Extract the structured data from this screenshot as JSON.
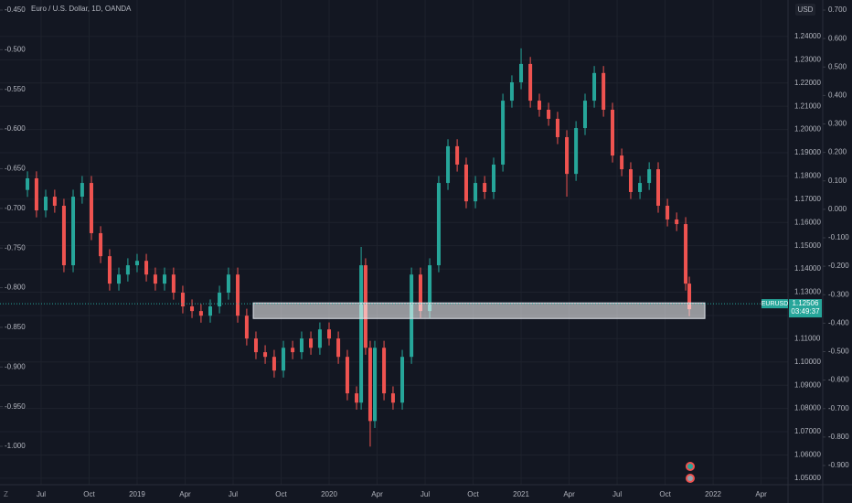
{
  "chart_data": {
    "type": "candlestick",
    "title": "Euro / U.S. Dollar, 1D, OANDA",
    "symbol": "EURUSD",
    "last_price": 1.12506,
    "countdown": "03:49:37",
    "currency": "USD",
    "up_color": "#26a69a",
    "down_color": "#ef5350",
    "grid": true,
    "xlim": [
      2018.286,
      2022.39
    ],
    "xticks": [
      {
        "value": 2018.5,
        "label": "Jul"
      },
      {
        "value": 2018.75,
        "label": "Oct"
      },
      {
        "value": 2019.0,
        "label": "2019"
      },
      {
        "value": 2019.25,
        "label": "Apr"
      },
      {
        "value": 2019.5,
        "label": "Jul"
      },
      {
        "value": 2019.75,
        "label": "Oct"
      },
      {
        "value": 2020.0,
        "label": "2020"
      },
      {
        "value": 2020.25,
        "label": "Apr"
      },
      {
        "value": 2020.5,
        "label": "Jul"
      },
      {
        "value": 2020.75,
        "label": "Oct"
      },
      {
        "value": 2021.0,
        "label": "2021"
      },
      {
        "value": 2021.25,
        "label": "Apr"
      },
      {
        "value": 2021.5,
        "label": "Jul"
      },
      {
        "value": 2021.75,
        "label": "Oct"
      },
      {
        "value": 2022.0,
        "label": "2022"
      },
      {
        "value": 2022.25,
        "label": "Apr"
      }
    ],
    "ylim": [
      1.0472,
      1.2557
    ],
    "yticks": [
      {
        "value": 1.24,
        "label": "1.24000"
      },
      {
        "value": 1.23,
        "label": "1.23000"
      },
      {
        "value": 1.22,
        "label": "1.22000"
      },
      {
        "value": 1.21,
        "label": "1.21000"
      },
      {
        "value": 1.2,
        "label": "1.20000"
      },
      {
        "value": 1.19,
        "label": "1.19000"
      },
      {
        "value": 1.18,
        "label": "1.18000"
      },
      {
        "value": 1.17,
        "label": "1.17000"
      },
      {
        "value": 1.16,
        "label": "1.16000"
      },
      {
        "value": 1.15,
        "label": "1.15000"
      },
      {
        "value": 1.14,
        "label": "1.14000"
      },
      {
        "value": 1.13,
        "label": "1.13000"
      },
      {
        "value": 1.12,
        "label": "1.12000"
      },
      {
        "value": 1.11,
        "label": "1.11000"
      },
      {
        "value": 1.1,
        "label": "1.10000"
      },
      {
        "value": 1.09,
        "label": "1.09000"
      },
      {
        "value": 1.08,
        "label": "1.08000"
      },
      {
        "value": 1.07,
        "label": "1.07000"
      },
      {
        "value": 1.06,
        "label": "1.06000"
      },
      {
        "value": 1.05,
        "label": "1.05000"
      }
    ],
    "y2lim": [
      -1.0484,
      -0.4373
    ],
    "y2ticks": [
      {
        "value": -0.45,
        "label": "-0.450"
      },
      {
        "value": -0.5,
        "label": "-0.500"
      },
      {
        "value": -0.55,
        "label": "-0.550"
      },
      {
        "value": -0.6,
        "label": "-0.600"
      },
      {
        "value": -0.65,
        "label": "-0.650"
      },
      {
        "value": -0.7,
        "label": "-0.700"
      },
      {
        "value": -0.75,
        "label": "-0.750"
      },
      {
        "value": -0.8,
        "label": "-0.800"
      },
      {
        "value": -0.85,
        "label": "-0.850"
      },
      {
        "value": -0.9,
        "label": "-0.900"
      },
      {
        "value": -0.95,
        "label": "-0.950"
      },
      {
        "value": -1.0,
        "label": "-1.000"
      }
    ],
    "y3lim": [
      -0.9675,
      0.7354
    ],
    "y3ticks": [
      {
        "value": 0.7,
        "label": "0.700"
      },
      {
        "value": 0.6,
        "label": "0.600"
      },
      {
        "value": 0.5,
        "label": "0.500"
      },
      {
        "value": 0.4,
        "label": "0.400"
      },
      {
        "value": 0.3,
        "label": "0.300"
      },
      {
        "value": 0.2,
        "label": "0.200"
      },
      {
        "value": 0.1,
        "label": "0.100"
      },
      {
        "value": 0,
        "label": "0.000"
      },
      {
        "value": -0.1,
        "label": "-0.100"
      },
      {
        "value": -0.2,
        "label": "-0.200"
      },
      {
        "value": -0.3,
        "label": "-0.300"
      },
      {
        "value": -0.4,
        "label": "-0.400"
      },
      {
        "value": -0.5,
        "label": "-0.500"
      },
      {
        "value": -0.6,
        "label": "-0.600"
      },
      {
        "value": -0.7,
        "label": "-0.700"
      },
      {
        "value": -0.8,
        "label": "-0.800"
      },
      {
        "value": -0.9,
        "label": "-0.900"
      }
    ],
    "zone": {
      "x": [
        2019.605,
        2021.957
      ],
      "y": [
        1.1187,
        1.1254
      ]
    },
    "x": [
      2018.429,
      2018.476,
      2018.524,
      2018.571,
      2018.619,
      2018.667,
      2018.714,
      2018.762,
      2018.81,
      2018.857,
      2018.905,
      2018.952,
      2019.0,
      2019.048,
      2019.095,
      2019.143,
      2019.19,
      2019.238,
      2019.286,
      2019.333,
      2019.381,
      2019.429,
      2019.476,
      2019.524,
      2019.571,
      2019.619,
      2019.667,
      2019.714,
      2019.762,
      2019.81,
      2019.857,
      2019.905,
      2019.952,
      2020.0,
      2020.048,
      2020.095,
      2020.143,
      2020.167,
      2020.19,
      2020.214,
      2020.238,
      2020.286,
      2020.333,
      2020.381,
      2020.429,
      2020.476,
      2020.524,
      2020.571,
      2020.619,
      2020.667,
      2020.714,
      2020.762,
      2020.81,
      2020.857,
      2020.905,
      2020.952,
      2021.0,
      2021.048,
      2021.095,
      2021.143,
      2021.19,
      2021.238,
      2021.286,
      2021.333,
      2021.381,
      2021.429,
      2021.476,
      2021.524,
      2021.571,
      2021.619,
      2021.667,
      2021.714,
      2021.762,
      2021.81,
      2021.857,
      2021.876
    ],
    "open": [
      1.174,
      1.179,
      1.1652,
      1.1711,
      1.1672,
      1.1416,
      1.1711,
      1.177,
      1.1554,
      1.1455,
      1.1337,
      1.1376,
      1.1416,
      1.1435,
      1.1376,
      1.1337,
      1.1376,
      1.1298,
      1.1239,
      1.1219,
      1.1199,
      1.1239,
      1.1298,
      1.1376,
      1.1199,
      1.1101,
      1.1042,
      1.1022,
      1.0963,
      1.1061,
      1.1042,
      1.1101,
      1.1061,
      1.114,
      1.1101,
      1.1022,
      1.0865,
      1.0825,
      1.1416,
      1.1061,
      1.0746,
      1.1061,
      1.0865,
      1.0825,
      1.1022,
      1.1376,
      1.1219,
      1.1416,
      1.177,
      1.1928,
      1.1849,
      1.1691,
      1.177,
      1.1731,
      1.1849,
      1.2124,
      1.2203,
      1.2282,
      1.2124,
      1.2085,
      1.2046,
      1.1967,
      1.1809,
      1.2006,
      1.2124,
      1.2243,
      1.2085,
      1.1888,
      1.1829,
      1.1731,
      1.177,
      1.1829,
      1.1672,
      1.1613,
      1.1593,
      1.1337
    ],
    "high": [
      1.182,
      1.182,
      1.1741,
      1.1741,
      1.1702,
      1.1741,
      1.18,
      1.18,
      1.1584,
      1.1485,
      1.1406,
      1.1446,
      1.1465,
      1.1465,
      1.1406,
      1.1406,
      1.1406,
      1.1328,
      1.1269,
      1.1249,
      1.1269,
      1.1328,
      1.1406,
      1.1406,
      1.1229,
      1.1131,
      1.1072,
      1.1052,
      1.1091,
      1.1091,
      1.1131,
      1.1131,
      1.117,
      1.117,
      1.1131,
      1.1052,
      1.0895,
      1.1495,
      1.1446,
      1.1091,
      1.1091,
      1.1091,
      1.0895,
      1.1052,
      1.1406,
      1.1406,
      1.1446,
      1.18,
      1.1958,
      1.1958,
      1.1879,
      1.18,
      1.18,
      1.1879,
      1.2154,
      1.2233,
      1.2349,
      1.2312,
      1.2154,
      1.2115,
      1.2076,
      1.1997,
      1.2036,
      1.2154,
      1.2273,
      1.2273,
      1.2115,
      1.1918,
      1.1859,
      1.18,
      1.1859,
      1.1859,
      1.1702,
      1.1643,
      1.1623,
      1.1367
    ],
    "low": [
      1.171,
      1.1622,
      1.1622,
      1.1642,
      1.1386,
      1.1386,
      1.1681,
      1.1524,
      1.1425,
      1.1307,
      1.1307,
      1.1346,
      1.1386,
      1.1346,
      1.1307,
      1.1307,
      1.1268,
      1.1209,
      1.1189,
      1.1169,
      1.1169,
      1.1209,
      1.1268,
      1.1169,
      1.1071,
      1.1012,
      1.0992,
      1.0933,
      1.0933,
      1.1012,
      1.1012,
      1.1031,
      1.1031,
      1.1071,
      1.0992,
      1.0835,
      1.0795,
      1.0795,
      1.1031,
      1.0636,
      1.0716,
      1.0835,
      1.0795,
      1.0795,
      1.0992,
      1.1189,
      1.1189,
      1.1386,
      1.174,
      1.1819,
      1.1661,
      1.1661,
      1.1701,
      1.1701,
      1.1819,
      1.2094,
      1.2173,
      1.2094,
      1.2055,
      1.2016,
      1.1937,
      1.1711,
      1.1779,
      1.1976,
      1.2094,
      1.2055,
      1.1858,
      1.1799,
      1.1701,
      1.1701,
      1.174,
      1.1642,
      1.1583,
      1.1563,
      1.1307,
      1.1197
    ],
    "close": [
      1.179,
      1.1652,
      1.1711,
      1.1672,
      1.1416,
      1.1711,
      1.177,
      1.1554,
      1.1455,
      1.1337,
      1.1376,
      1.1416,
      1.1435,
      1.1376,
      1.1337,
      1.1376,
      1.1298,
      1.1239,
      1.1219,
      1.1199,
      1.1239,
      1.1298,
      1.1376,
      1.1199,
      1.1101,
      1.1042,
      1.1022,
      1.0963,
      1.1061,
      1.1042,
      1.1101,
      1.1061,
      1.114,
      1.1101,
      1.1022,
      1.0865,
      1.0825,
      1.1416,
      1.1061,
      1.0746,
      1.1061,
      1.0865,
      1.0825,
      1.1022,
      1.1376,
      1.1219,
      1.1416,
      1.177,
      1.1928,
      1.1849,
      1.1691,
      1.177,
      1.1731,
      1.1849,
      1.2124,
      1.2203,
      1.2282,
      1.2124,
      1.2085,
      1.2046,
      1.1967,
      1.1809,
      1.2006,
      1.2124,
      1.2243,
      1.2085,
      1.1888,
      1.1829,
      1.1731,
      1.177,
      1.1829,
      1.1672,
      1.1613,
      1.1593,
      1.1337,
      1.1227
    ]
  }
}
